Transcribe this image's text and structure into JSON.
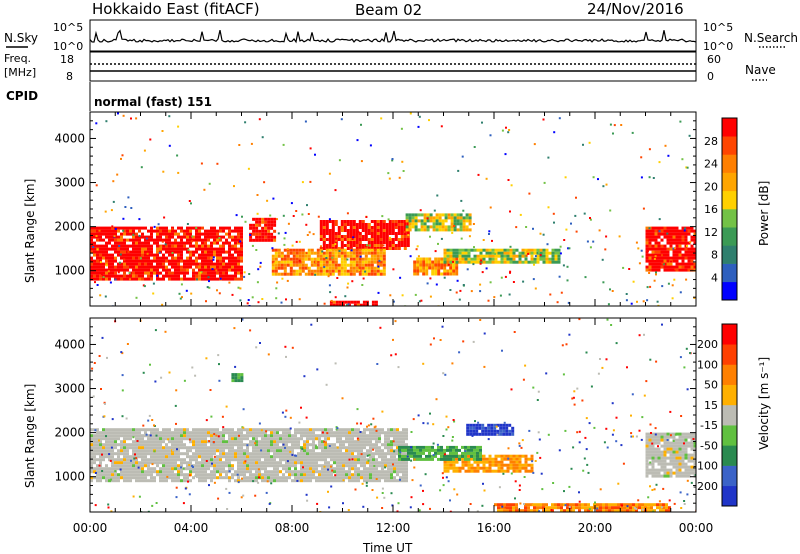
{
  "header": {
    "station": "Hokkaido East (fitACF)",
    "beam": "Beam 02",
    "date": "24/Nov/2016"
  },
  "nsky": {
    "label": "N.Sky",
    "ticks": [
      "10^5",
      "10^0"
    ],
    "right_label": "N.Search",
    "right_ticks": [
      "10^5",
      "10^0"
    ]
  },
  "freq": {
    "label_line1": "Freq.",
    "label_line2": "[MHz]",
    "ticks": [
      "18",
      "8"
    ],
    "right_label": "Nave",
    "right_ticks": [
      "60",
      "0"
    ]
  },
  "cpid": {
    "label": "CPID",
    "value": "normal (fast) 151"
  },
  "colors": {
    "power": [
      "#0000ff",
      "#2e5fbe",
      "#2f7f6e",
      "#3b9a55",
      "#73c246",
      "#ffd000",
      "#ffa500",
      "#ff7f00",
      "#ff4500",
      "#ff0000"
    ],
    "velocity": [
      "#2035c8",
      "#3b63c8",
      "#2a8a50",
      "#60c040",
      "#bcbcb4",
      "#ffb000",
      "#ff8000",
      "#ff4000",
      "#ff0000"
    ]
  },
  "chart_data": [
    {
      "type": "heatmap",
      "name": "power",
      "ylabel": "Slant Range [km]",
      "yticks": [
        "1000",
        "2000",
        "3000",
        "4000"
      ],
      "ylim": [
        200,
        4600
      ],
      "xlim": [
        0,
        24
      ],
      "colorbar": {
        "label": "Power [dB]",
        "ticks": [
          "4",
          "8",
          "12",
          "16",
          "20",
          "24",
          "28"
        ],
        "range": [
          0,
          32
        ]
      },
      "regions": [
        {
          "t0": 0.0,
          "t1": 6.0,
          "r0": 800,
          "r1": 2000,
          "level": "high"
        },
        {
          "t0": 6.3,
          "t1": 7.3,
          "r0": 1700,
          "r1": 2200,
          "level": "high"
        },
        {
          "t0": 9.1,
          "t1": 12.6,
          "r0": 1500,
          "r1": 2150,
          "level": "high"
        },
        {
          "t0": 7.2,
          "t1": 11.6,
          "r0": 900,
          "r1": 1500,
          "level": "medium"
        },
        {
          "t0": 12.8,
          "t1": 14.5,
          "r0": 900,
          "r1": 1300,
          "level": "medium"
        },
        {
          "t0": 14.0,
          "t1": 18.6,
          "r0": 1200,
          "r1": 1500,
          "level": "low"
        },
        {
          "t0": 12.5,
          "t1": 15.0,
          "r0": 1900,
          "r1": 2300,
          "level": "low"
        },
        {
          "t0": 22.0,
          "t1": 24.0,
          "r0": 1000,
          "r1": 2000,
          "level": "high"
        },
        {
          "t0": 9.5,
          "t1": 11.3,
          "r0": 200,
          "r1": 320,
          "level": "high"
        }
      ]
    },
    {
      "type": "heatmap",
      "name": "velocity",
      "ylabel": "Slant Range [km]",
      "yticks": [
        "1000",
        "2000",
        "3000",
        "4000"
      ],
      "ylim": [
        200,
        4600
      ],
      "xlim": [
        0,
        24
      ],
      "xticks": [
        "00:00",
        "04:00",
        "08:00",
        "12:00",
        "16:00",
        "20:00",
        "00:00"
      ],
      "xlabel": "Time UT",
      "colorbar": {
        "label": "Velocity [m s⁻¹]",
        "ticks": [
          "200",
          "100",
          "50",
          "15",
          "-15",
          "-50",
          "-100",
          "-200"
        ],
        "range": [
          -250,
          250
        ]
      },
      "regions": [
        {
          "t0": 0.0,
          "t1": 12.5,
          "r0": 900,
          "r1": 2100,
          "level": "ground"
        },
        {
          "t0": 22.0,
          "t1": 24.0,
          "r0": 1000,
          "r1": 2000,
          "level": "ground"
        },
        {
          "t0": 14.9,
          "t1": 16.8,
          "r0": 1950,
          "r1": 2200,
          "level": "toward"
        },
        {
          "t0": 14.0,
          "t1": 17.5,
          "r0": 1100,
          "r1": 1500,
          "level": "away"
        },
        {
          "t0": 12.2,
          "t1": 15.5,
          "r0": 1400,
          "r1": 1700,
          "level": "weak-toward"
        },
        {
          "t0": 5.6,
          "t1": 6.0,
          "r0": 3200,
          "r1": 3350,
          "level": "weak-toward"
        },
        {
          "t0": 16.0,
          "t1": 23.0,
          "r0": 200,
          "r1": 400,
          "level": "weak-away"
        }
      ]
    }
  ]
}
